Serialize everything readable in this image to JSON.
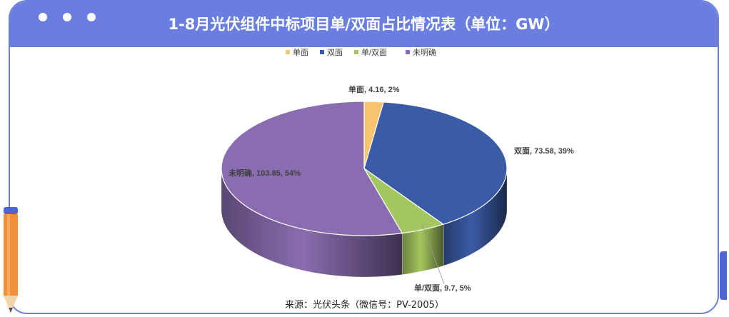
{
  "header": {
    "title": "1-8月光伏组件中标项目单/双面占比情况表（单位：GW）"
  },
  "footer": {
    "source": "来源：光伏头条（微信号：PV-2005）"
  },
  "chart_data": {
    "type": "pie",
    "title": "1-8月光伏组件中标项目单/双面占比情况表（单位：GW）",
    "legend_position": "top",
    "slices": [
      {
        "name": "单面",
        "value": 4.16,
        "percent": "2%",
        "label": "单面, 4.16, 2%",
        "color": "#f7c46c"
      },
      {
        "name": "双面",
        "value": 73.58,
        "percent": "39%",
        "label": "双面, 73.58, 39%",
        "color": "#3a5ba5"
      },
      {
        "name": "单/双面",
        "value": 9.7,
        "percent": "5%",
        "label": "单/双面, 9.7, 5%",
        "color": "#a4c65e"
      },
      {
        "name": "未明确",
        "value": 103.85,
        "percent": "54%",
        "label": "未明确, 103.85, 54%",
        "color": "#8a6db0"
      }
    ]
  }
}
